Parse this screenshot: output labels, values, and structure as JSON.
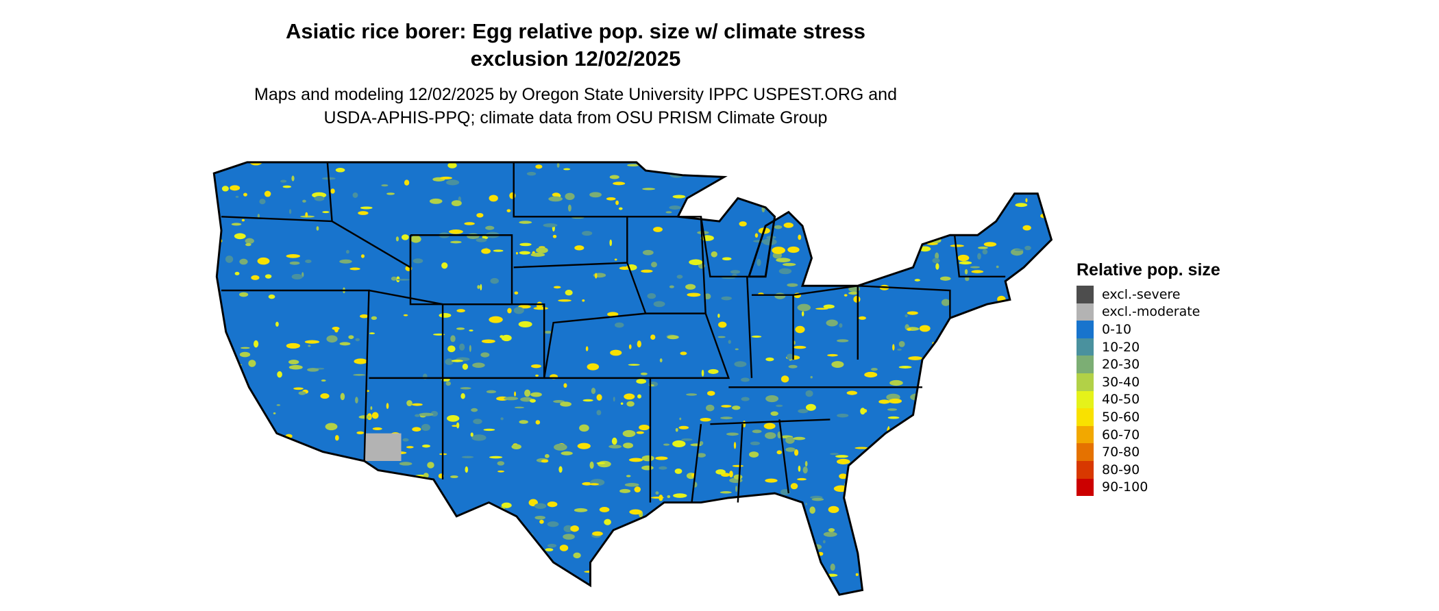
{
  "title_line1": "Asiatic rice borer: Egg relative pop. size w/ climate stress",
  "title_line2": "exclusion 12/02/2025",
  "subtitle_line1": "Maps and modeling 12/02/2025 by Oregon State University IPPC USPEST.ORG and",
  "subtitle_line2": "USDA-APHIS-PPQ; climate data from OSU PRISM Climate Group",
  "map": {
    "region": "Contiguous United States",
    "dominant_class": "0-10"
  },
  "legend": {
    "title": "Relative pop. size",
    "items": [
      {
        "label": "excl.-severe",
        "color": "#4d4d4d"
      },
      {
        "label": "excl.-moderate",
        "color": "#b3b3b3"
      },
      {
        "label": "0-10",
        "color": "#1874cd"
      },
      {
        "label": "10-20",
        "color": "#4a919e"
      },
      {
        "label": "20-30",
        "color": "#7cae74"
      },
      {
        "label": "30-40",
        "color": "#b2d147"
      },
      {
        "label": "40-50",
        "color": "#e5f21a"
      },
      {
        "label": "50-60",
        "color": "#f9e100"
      },
      {
        "label": "60-70",
        "color": "#f2a800"
      },
      {
        "label": "70-80",
        "color": "#e57200"
      },
      {
        "label": "80-90",
        "color": "#d83800"
      },
      {
        "label": "90-100",
        "color": "#cc0000"
      }
    ]
  }
}
